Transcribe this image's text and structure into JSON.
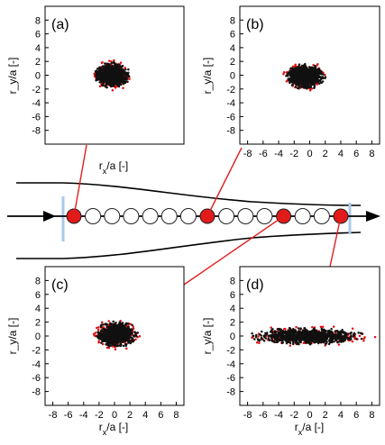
{
  "colors": {
    "axis": "#000000",
    "scatter_black": "#111111",
    "scatter_red": "#e01010",
    "connector_red": "#e02020",
    "bead_red": "#e31a1a",
    "bead_white": "#ffffff",
    "plate_blue": "#a9c9ea"
  },
  "panels": [
    {
      "id": "a",
      "label": "(a)",
      "ylabel": "r_y/a [-]",
      "xlabel": "r_x/a [-]",
      "show_x_ticks": false,
      "show_y_ticks": true
    },
    {
      "id": "b",
      "label": "(b)",
      "ylabel": "r_y/a [-]",
      "xlabel": "r_x/a [-]",
      "show_x_ticks": true,
      "show_y_ticks": true
    },
    {
      "id": "c",
      "label": "(c)",
      "ylabel": "r_y/a [-]",
      "xlabel": "r_x/a [-]",
      "show_x_ticks": true,
      "show_y_ticks": true
    },
    {
      "id": "d",
      "label": "(d)",
      "ylabel": "r_y/a [-]",
      "xlabel": "r_x/a [-]",
      "show_x_ticks": true,
      "show_y_ticks": true
    }
  ],
  "chart_data": [
    {
      "type": "scatter",
      "panel": "a",
      "xlim": [
        -9,
        9
      ],
      "ylim": [
        -10,
        10
      ],
      "xticks": [
        -8,
        -6,
        -4,
        -2,
        0,
        2,
        4,
        6,
        8
      ],
      "yticks": [
        8,
        6,
        4,
        2,
        0,
        -2,
        -4,
        -6,
        -8
      ],
      "cloud": {
        "center": [
          -0.3,
          0
        ],
        "half_width_x": 2.8,
        "half_width_y": 2.2
      },
      "series": [
        {
          "color": "black"
        },
        {
          "color": "red"
        }
      ]
    },
    {
      "type": "scatter",
      "panel": "b",
      "xlim": [
        -9,
        9
      ],
      "ylim": [
        -10,
        10
      ],
      "xticks": [
        -8,
        -6,
        -4,
        -2,
        0,
        2,
        4,
        6,
        8
      ],
      "yticks": [
        8,
        6,
        4,
        2,
        0,
        -2,
        -4,
        -6,
        -8
      ],
      "cloud": {
        "center": [
          -0.5,
          -0.2
        ],
        "half_width_x": 3.0,
        "half_width_y": 2.2
      },
      "series": [
        {
          "color": "black"
        },
        {
          "color": "red"
        }
      ]
    },
    {
      "type": "scatter",
      "panel": "c",
      "xlim": [
        -9,
        9
      ],
      "ylim": [
        -10,
        10
      ],
      "xticks": [
        -8,
        -6,
        -4,
        -2,
        0,
        2,
        4,
        6,
        8
      ],
      "yticks": [
        8,
        6,
        4,
        2,
        0,
        -2,
        -4,
        -6,
        -8
      ],
      "cloud": {
        "center": [
          0.3,
          0.3
        ],
        "half_width_x": 3.2,
        "half_width_y": 2.3
      },
      "series": [
        {
          "color": "black"
        },
        {
          "color": "red"
        }
      ]
    },
    {
      "type": "scatter",
      "panel": "d",
      "xlim": [
        -9,
        9
      ],
      "ylim": [
        -10,
        10
      ],
      "xticks": [
        -8,
        -6,
        -4,
        -2,
        0,
        2,
        4,
        6,
        8
      ],
      "yticks": [
        8,
        6,
        4,
        2,
        0,
        -2,
        -4,
        -6,
        -8
      ],
      "cloud": {
        "center": [
          -0.3,
          0
        ],
        "half_width_x": 8.8,
        "half_width_y": 1.5
      },
      "series": [
        {
          "color": "black"
        },
        {
          "color": "red"
        }
      ]
    }
  ],
  "diagram": {
    "beads": [
      "red",
      "white",
      "white",
      "white",
      "white",
      "white",
      "white",
      "red",
      "white",
      "white",
      "white",
      "red",
      "white",
      "white",
      "red"
    ],
    "connections": [
      {
        "panel": "a",
        "bead_index": 0
      },
      {
        "panel": "b",
        "bead_index": 7
      },
      {
        "panel": "c",
        "bead_index": 11
      },
      {
        "panel": "d",
        "bead_index": 14
      }
    ]
  }
}
